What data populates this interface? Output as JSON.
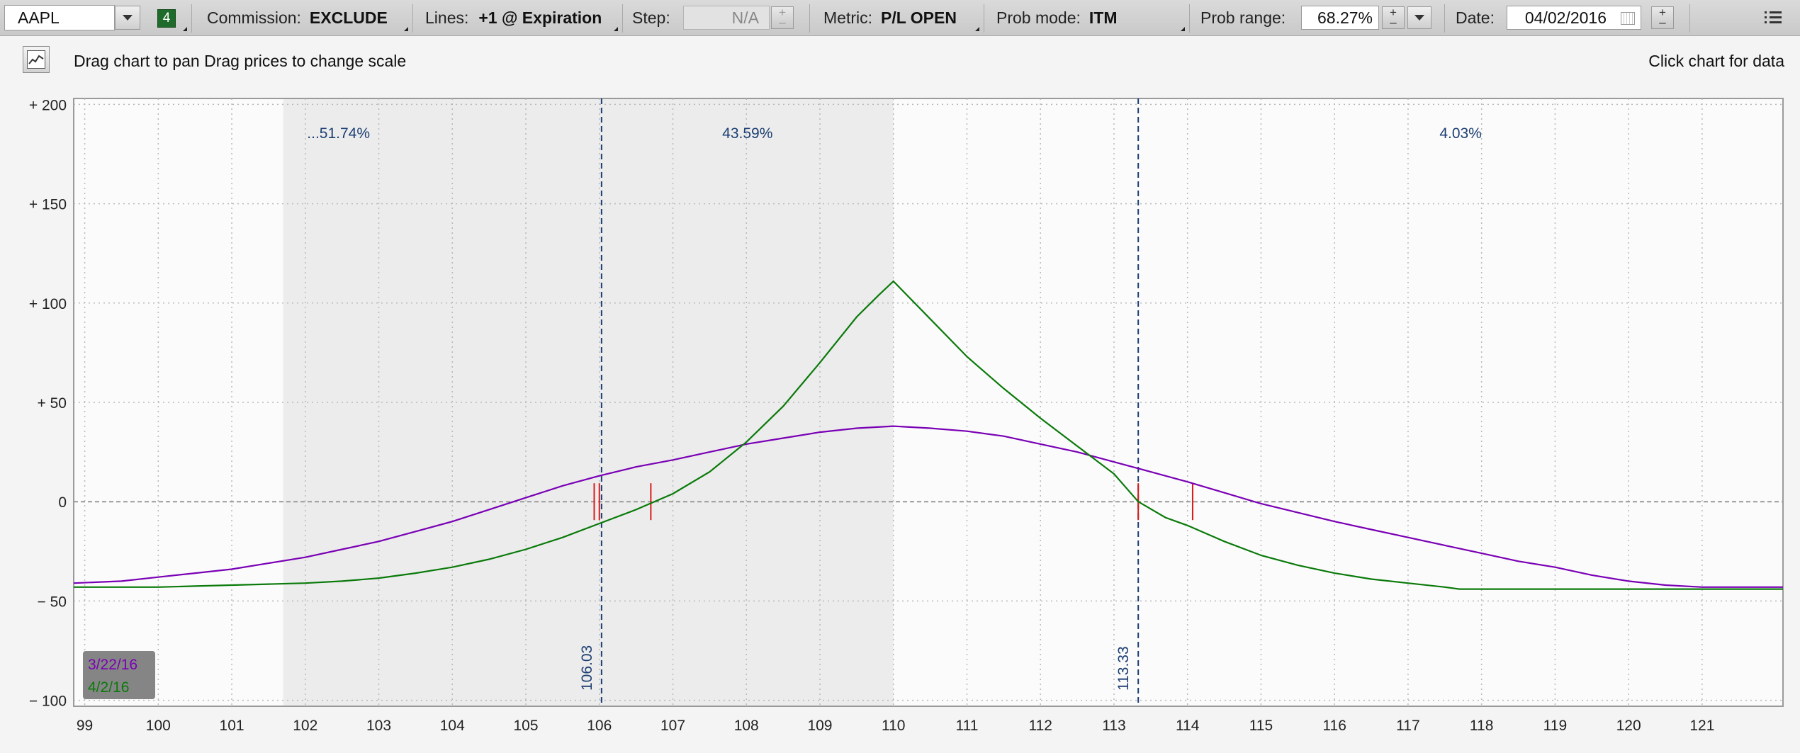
{
  "toolbar": {
    "symbol": "AAPL",
    "link_number": "4",
    "commission_label": "Commission:",
    "commission_value": "EXCLUDE",
    "lines_label": "Lines:",
    "lines_value": "+1 @ Expiration",
    "step_label": "Step:",
    "step_value": "N/A",
    "metric_label": "Metric:",
    "metric_value": "P/L OPEN",
    "prob_mode_label": "Prob mode:",
    "prob_mode_value": "ITM",
    "prob_range_label": "Prob range:",
    "prob_range_value": "68.27%",
    "date_label": "Date:",
    "date_value": "04/02/2016",
    "menu_icon": "list-menu-icon"
  },
  "hint": {
    "text": "Drag chart to pan Drag prices to change scale",
    "click_text": "Click chart for data",
    "icon": "chart-mode-icon"
  },
  "chart_data": {
    "type": "line",
    "xlim": [
      98.85,
      122.1
    ],
    "ylim": [
      -103,
      203
    ],
    "x_ticks": [
      99,
      100,
      101,
      102,
      103,
      104,
      105,
      106,
      107,
      108,
      109,
      110,
      111,
      112,
      113,
      114,
      115,
      116,
      117,
      118,
      119,
      120,
      121
    ],
    "y_ticks": [
      200,
      150,
      100,
      50,
      0,
      -50,
      -100
    ],
    "y_tick_labels": [
      "+ 200",
      "+ 150",
      "+ 100",
      "+ 50",
      "0",
      "− 50",
      "− 100"
    ],
    "grid": true,
    "probability_regions": [
      {
        "label": "...51.74%",
        "from": 101.7,
        "to": 106.03,
        "shaded": true
      },
      {
        "label": "43.59%",
        "from": 106.03,
        "to": 110.0,
        "shaded": true
      },
      {
        "label": "4.03%",
        "from": 113.33,
        "to": 122.1,
        "shaded": false
      }
    ],
    "price_markers": [
      {
        "label": "106.03",
        "x": 106.03
      },
      {
        "label": "113.33",
        "x": 113.33
      }
    ],
    "breakeven_ticks": [
      105.93,
      106.0,
      106.7,
      113.33,
      114.07
    ],
    "series": [
      {
        "name": "3/22/16",
        "color": "#7a00b5",
        "x": [
          98.85,
          99.5,
          100.0,
          100.5,
          101.0,
          101.5,
          102.0,
          102.5,
          103.0,
          103.5,
          104.0,
          104.5,
          105.0,
          105.5,
          106.0,
          106.5,
          107.0,
          107.5,
          108.0,
          108.5,
          109.0,
          109.5,
          110.0,
          110.5,
          111.0,
          111.5,
          112.0,
          112.5,
          113.0,
          113.5,
          114.0,
          114.5,
          115.0,
          115.5,
          116.0,
          116.5,
          117.0,
          117.5,
          118.0,
          118.5,
          119.0,
          119.5,
          120.0,
          120.5,
          121.0,
          121.5,
          122.1
        ],
        "y": [
          -41,
          -40,
          -38,
          -36,
          -34,
          -31,
          -28,
          -24,
          -20,
          -15,
          -10,
          -4,
          2,
          8,
          13,
          17.5,
          21,
          25,
          29,
          32,
          35,
          37,
          38,
          37,
          35.5,
          33,
          29,
          25,
          20,
          15,
          10,
          4.5,
          -1,
          -5.5,
          -10,
          -14,
          -18,
          -22,
          -26,
          -30,
          -33,
          -37,
          -40,
          -42,
          -43,
          -43,
          -43
        ]
      },
      {
        "name": "4/2/16",
        "color": "#0a7a0a",
        "x": [
          98.85,
          99.5,
          100.0,
          100.5,
          101.0,
          101.5,
          102.0,
          102.5,
          103.0,
          103.5,
          104.0,
          104.5,
          105.0,
          105.5,
          106.0,
          106.5,
          107.0,
          107.5,
          108.0,
          108.5,
          109.0,
          109.5,
          109.8,
          110.0,
          110.5,
          111.0,
          111.5,
          112.0,
          112.5,
          113.0,
          113.33,
          113.7,
          114.0,
          114.5,
          115.0,
          115.5,
          116.0,
          116.5,
          117.0,
          117.5,
          117.7,
          118.5,
          119.0,
          119.5,
          120.0,
          120.5,
          121.0,
          122.1
        ],
        "y": [
          -43,
          -43,
          -43,
          -42.5,
          -42,
          -41.5,
          -41,
          -40,
          -38.5,
          -36,
          -33,
          -29,
          -24,
          -18,
          -11,
          -4,
          4,
          15,
          30,
          48,
          70,
          93,
          104,
          111,
          92,
          73,
          57,
          42,
          28,
          14,
          0,
          -8,
          -12,
          -20,
          -27,
          -32,
          -36,
          -39,
          -41,
          -43,
          -44,
          -44,
          -44,
          -44,
          -44,
          -44,
          -44,
          -44
        ]
      }
    ]
  }
}
